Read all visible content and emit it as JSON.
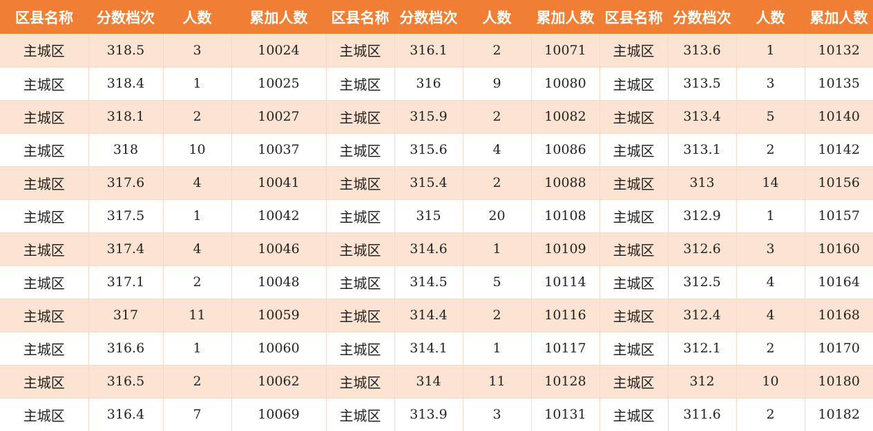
{
  "table": {
    "headers": [
      "区县名称",
      "分数档次",
      "人数",
      "累加人数",
      "区县名称",
      "分数档次",
      "人数",
      "累加人数",
      "区县名称",
      "分数档次",
      "人数",
      "累加人数"
    ],
    "rows": [
      [
        "主城区",
        "318.5",
        "3",
        "10024",
        "主城区",
        "316.1",
        "2",
        "10071",
        "主城区",
        "313.6",
        "1",
        "10132"
      ],
      [
        "主城区",
        "318.4",
        "1",
        "10025",
        "主城区",
        "316",
        "9",
        "10080",
        "主城区",
        "313.5",
        "3",
        "10135"
      ],
      [
        "主城区",
        "318.1",
        "2",
        "10027",
        "主城区",
        "315.9",
        "2",
        "10082",
        "主城区",
        "313.4",
        "5",
        "10140"
      ],
      [
        "主城区",
        "318",
        "10",
        "10037",
        "主城区",
        "315.6",
        "4",
        "10086",
        "主城区",
        "313.1",
        "2",
        "10142"
      ],
      [
        "主城区",
        "317.6",
        "4",
        "10041",
        "主城区",
        "315.4",
        "2",
        "10088",
        "主城区",
        "313",
        "14",
        "10156"
      ],
      [
        "主城区",
        "317.5",
        "1",
        "10042",
        "主城区",
        "315",
        "20",
        "10108",
        "主城区",
        "312.9",
        "1",
        "10157"
      ],
      [
        "主城区",
        "317.4",
        "4",
        "10046",
        "主城区",
        "314.6",
        "1",
        "10109",
        "主城区",
        "312.6",
        "3",
        "10160"
      ],
      [
        "主城区",
        "317.1",
        "2",
        "10048",
        "主城区",
        "314.5",
        "5",
        "10114",
        "主城区",
        "312.5",
        "4",
        "10164"
      ],
      [
        "主城区",
        "317",
        "11",
        "10059",
        "主城区",
        "314.4",
        "2",
        "10116",
        "主城区",
        "312.4",
        "4",
        "10168"
      ],
      [
        "主城区",
        "316.6",
        "1",
        "10060",
        "主城区",
        "314.1",
        "1",
        "10117",
        "主城区",
        "312.1",
        "2",
        "10170"
      ],
      [
        "主城区",
        "316.5",
        "2",
        "10062",
        "主城区",
        "314",
        "11",
        "10128",
        "主城区",
        "312",
        "10",
        "10180"
      ],
      [
        "主城区",
        "316.4",
        "7",
        "10069",
        "主城区",
        "313.9",
        "3",
        "10131",
        "主城区",
        "311.6",
        "2",
        "10182"
      ]
    ]
  },
  "colors": {
    "header_bg": "#f07f35",
    "header_text": "#ffffff",
    "stripe_bg": "#fde4d2",
    "row_bg": "#ffffff"
  }
}
